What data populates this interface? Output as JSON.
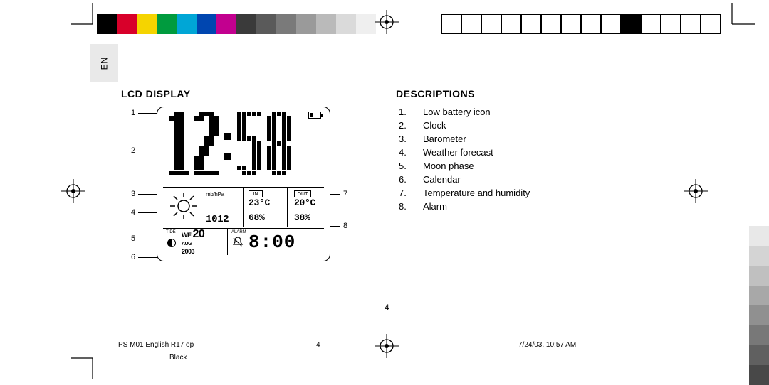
{
  "lang_label": "EN",
  "headings": {
    "left": "LCD DISPLAY",
    "right": "DESCRIPTIONS"
  },
  "callouts_left": [
    "1",
    "2",
    "3",
    "4",
    "5",
    "6"
  ],
  "callouts_right": [
    "7",
    "8"
  ],
  "lcd": {
    "batt_present": true,
    "big_time": "12:58",
    "in_label": "IN",
    "out_label": "OUT",
    "row_temp_in": "23°C",
    "row_temp_out": "20°C",
    "row_hum_in": "68%",
    "row_hum_out": "38%",
    "baro_value": "1012",
    "baro_unit": "mb/hPa",
    "tide_label": "TIDE",
    "cal_dow": "WE",
    "cal_mon": "AUG",
    "cal_day": "20",
    "cal_year": "2003",
    "alarm_label": "ALARM",
    "alarm_time": "8:00"
  },
  "descriptions": [
    {
      "n": "1.",
      "t": "Low battery icon"
    },
    {
      "n": "2.",
      "t": "Clock"
    },
    {
      "n": "3.",
      "t": "Barometer"
    },
    {
      "n": "4.",
      "t": "Weather forecast"
    },
    {
      "n": "5.",
      "t": "Moon phase"
    },
    {
      "n": "6.",
      "t": "Calendar"
    },
    {
      "n": "7.",
      "t": "Temperature and humidity"
    },
    {
      "n": "8.",
      "t": "Alarm"
    }
  ],
  "page_number": "4",
  "footer": {
    "doc_id": "PS M01 English R17 op",
    "page": "4",
    "timestamp": "7/24/03, 10:57 AM",
    "color": "Black"
  },
  "swatches_left": [
    "#000000",
    "#d8002a",
    "#f5d400",
    "#009b3e",
    "#00a6d6",
    "#0046b0",
    "#c2008f",
    "#3a3a3a",
    "#5a5a5a",
    "#7a7a7a",
    "#9a9a9a",
    "#bababa",
    "#dadada",
    "#efefef"
  ],
  "swatches_right_boxes": 14,
  "swatches_right_filled_index": 9,
  "swatches_col": [
    "#ffffff",
    "#e8e8e8",
    "#d4d4d4",
    "#c0c0c0",
    "#a8a8a8",
    "#909090",
    "#787878",
    "#606060",
    "#484848"
  ]
}
